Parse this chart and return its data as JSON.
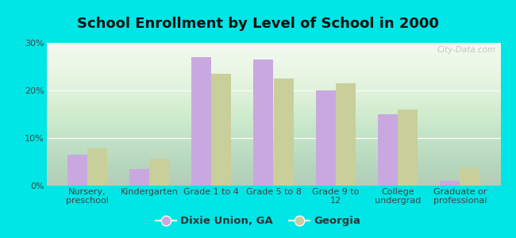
{
  "title": "School Enrollment by Level of School in 2000",
  "categories": [
    "Nursery,\npreschool",
    "Kindergarten",
    "Grade 1 to 4",
    "Grade 5 to 8",
    "Grade 9 to\n12",
    "College\nundergrad",
    "Graduate or\nprofessional"
  ],
  "dixie_values": [
    6.5,
    3.5,
    27.0,
    26.5,
    20.0,
    15.0,
    1.0
  ],
  "georgia_values": [
    7.8,
    5.7,
    23.5,
    22.5,
    21.5,
    16.0,
    3.7
  ],
  "dixie_color": "#c9a8e0",
  "georgia_color": "#c8cf9a",
  "background_color": "#00e5e5",
  "plot_bg_color": "#e8f5e0",
  "ylim": [
    0,
    30
  ],
  "yticks": [
    0,
    10,
    20,
    30
  ],
  "ytick_labels": [
    "0%",
    "10%",
    "20%",
    "30%"
  ],
  "legend_labels": [
    "Dixie Union, GA",
    "Georgia"
  ],
  "title_fontsize": 13,
  "tick_fontsize": 8,
  "legend_fontsize": 9.5,
  "watermark_text": "City-Data.com",
  "bar_width": 0.32
}
